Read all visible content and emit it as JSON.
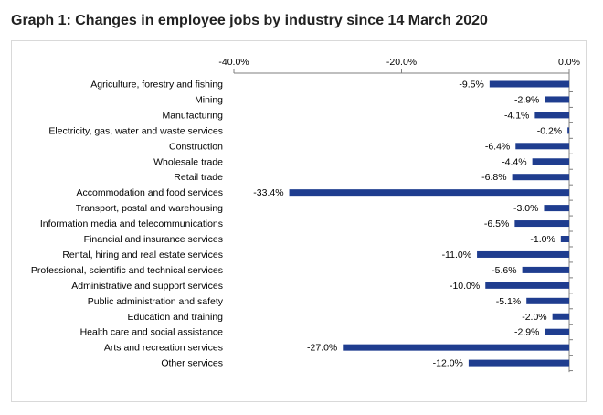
{
  "chart_data": {
    "type": "bar",
    "orientation": "horizontal",
    "title": "Graph 1: Changes in employee jobs by industry since 14 March 2020",
    "xlabel": "",
    "ylabel": "",
    "xlim": [
      -40,
      0
    ],
    "ticks": [
      -40,
      -20,
      0
    ],
    "tick_labels": [
      "-40.0%",
      "-20.0%",
      "0.0%"
    ],
    "axis_position": "top",
    "bar_color": "#1f3d8f",
    "categories": [
      "Agriculture, forestry and fishing",
      "Mining",
      "Manufacturing",
      "Electricity, gas, water and waste services",
      "Construction",
      "Wholesale trade",
      "Retail trade",
      "Accommodation and food services",
      "Transport, postal and warehousing",
      "Information media and telecommunications",
      "Financial and insurance services",
      "Rental, hiring and real estate services",
      "Professional, scientific and technical services",
      "Administrative and support services",
      "Public administration and safety",
      "Education and training",
      "Health care and social assistance",
      "Arts and recreation services",
      "Other services"
    ],
    "values": [
      -9.5,
      -2.9,
      -4.1,
      -0.2,
      -6.4,
      -4.4,
      -6.8,
      -33.4,
      -3.0,
      -6.5,
      -1.0,
      -11.0,
      -5.6,
      -10.0,
      -5.1,
      -2.0,
      -2.9,
      -27.0,
      -12.0
    ],
    "data_labels": [
      "-9.5%",
      "-2.9%",
      "-4.1%",
      "-0.2%",
      "-6.4%",
      "-4.4%",
      "-6.8%",
      "-33.4%",
      "-3.0%",
      "-6.5%",
      "-1.0%",
      "-11.0%",
      "-5.6%",
      "-10.0%",
      "-5.1%",
      "-2.0%",
      "-2.9%",
      "-27.0%",
      "-12.0%"
    ]
  }
}
